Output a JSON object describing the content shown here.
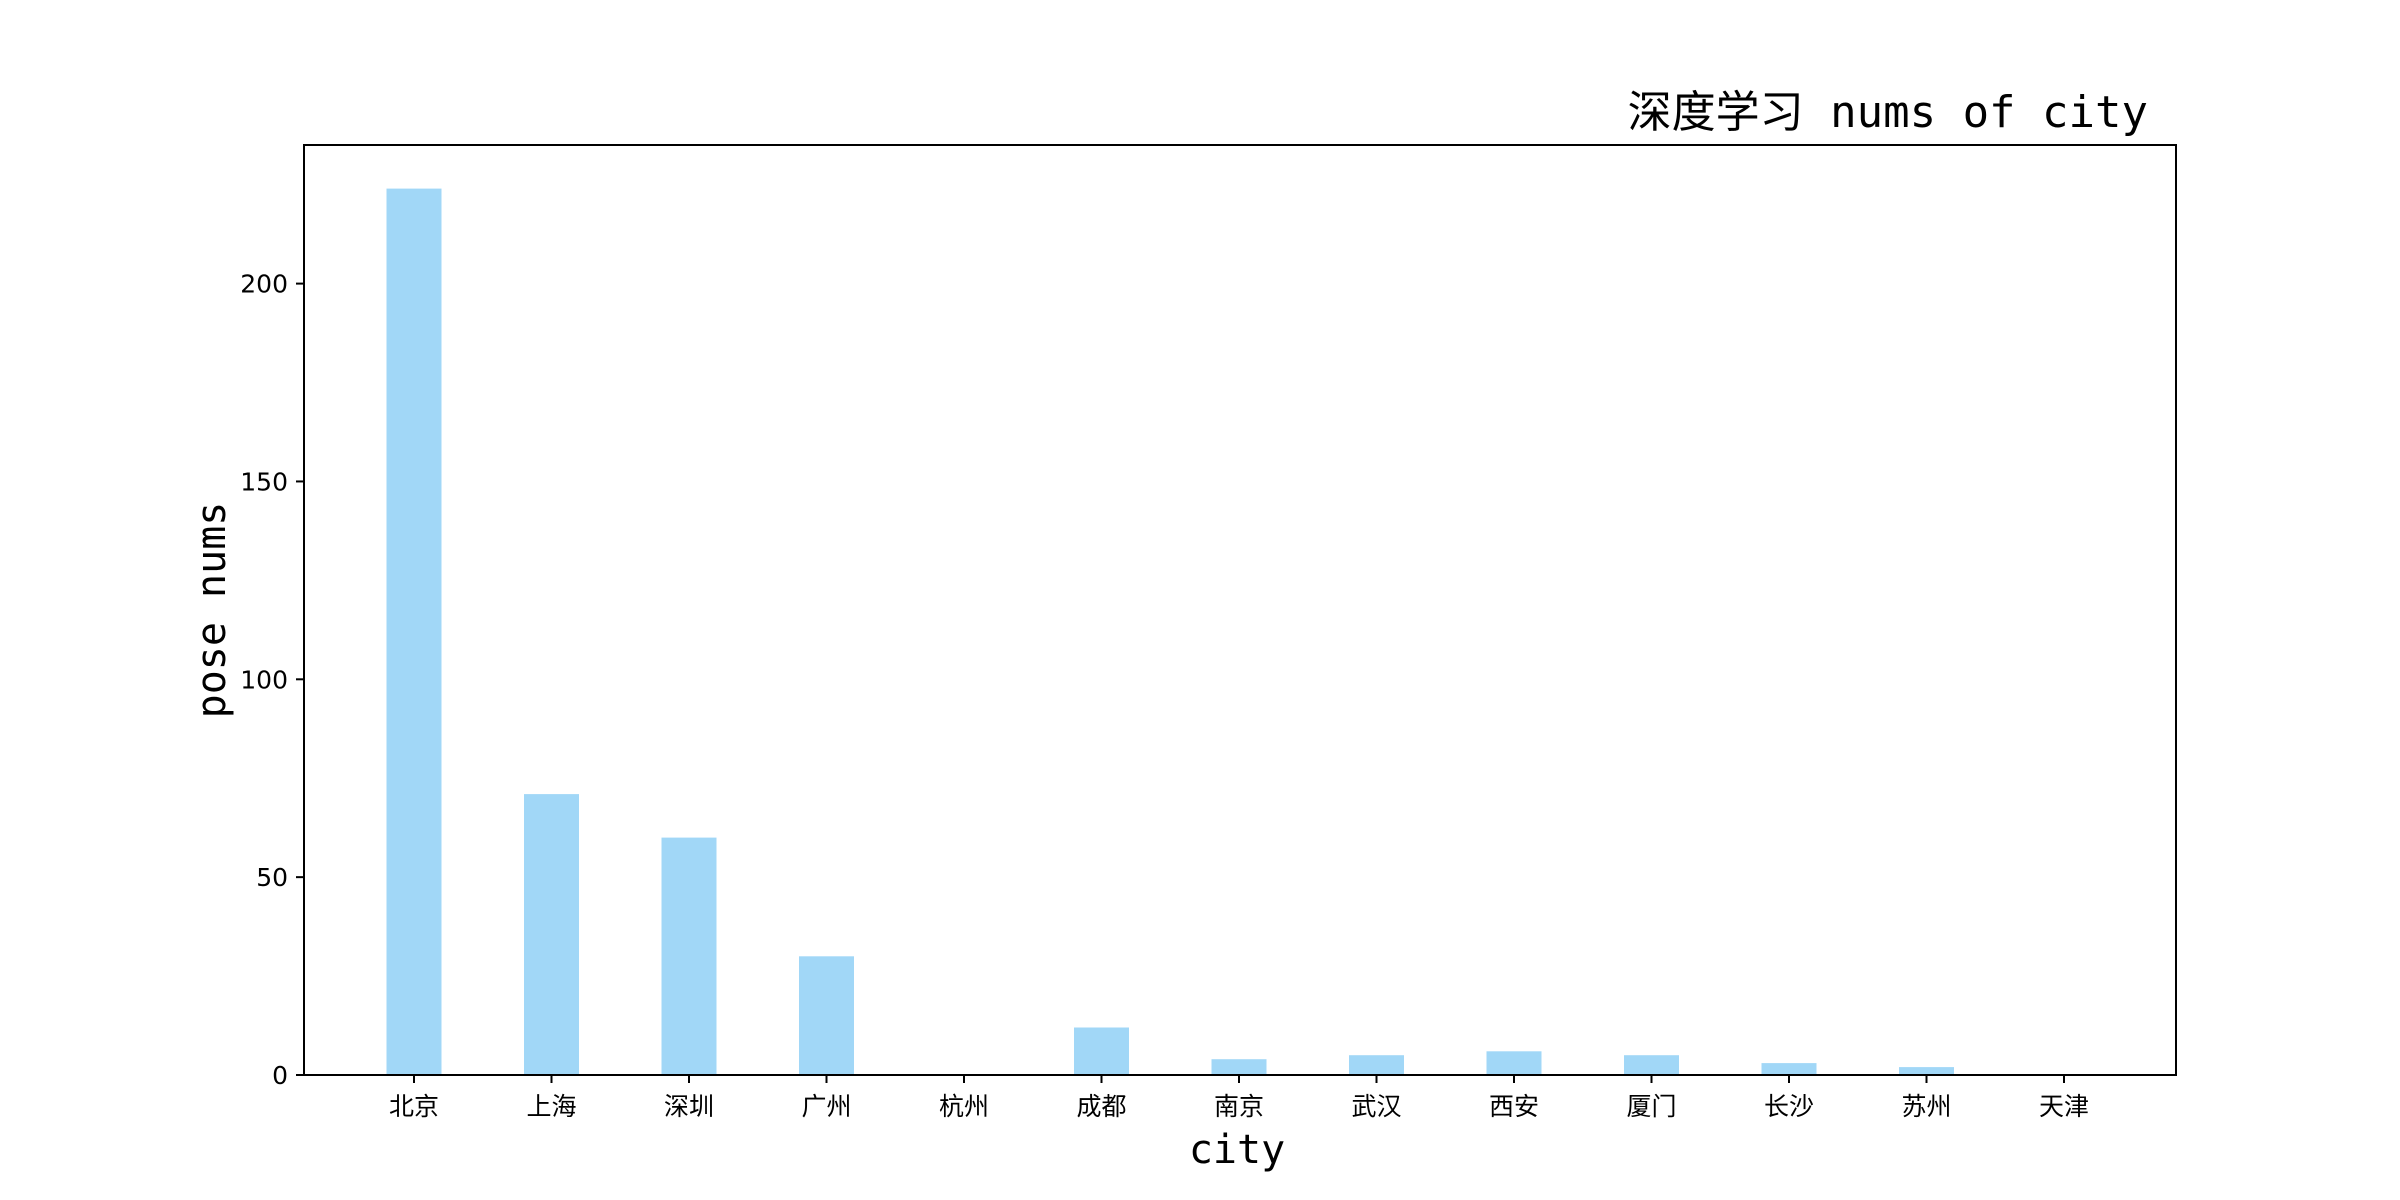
{
  "chart_data": {
    "type": "bar",
    "title": "深度学习 nums of city",
    "xlabel": "city",
    "ylabel": "pose nums",
    "categories": [
      "北京",
      "上海",
      "深圳",
      "广州",
      "杭州",
      "成都",
      "南京",
      "武汉",
      "西安",
      "厦门",
      "长沙",
      "苏州",
      "天津"
    ],
    "values": [
      224,
      71,
      60,
      30,
      0,
      12,
      4,
      5,
      6,
      5,
      3,
      2,
      0
    ],
    "ylim": [
      0,
      235
    ],
    "yticks": [
      0,
      50,
      100,
      150,
      200
    ],
    "grid": false,
    "legend": "none",
    "bar_color": "#a1d7f7"
  }
}
